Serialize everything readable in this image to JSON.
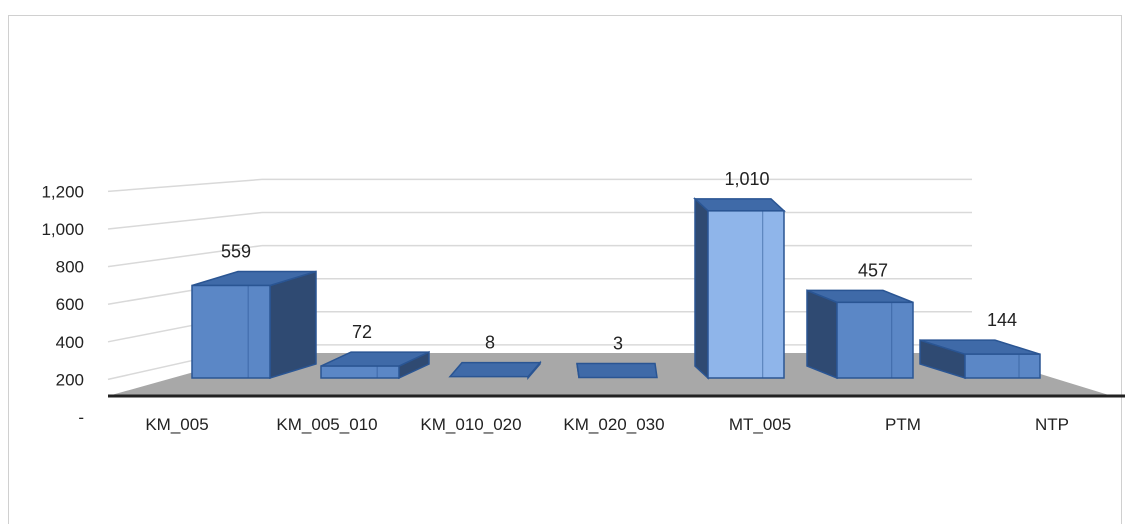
{
  "chart_data": {
    "type": "bar",
    "style": "3d-column",
    "title": "",
    "xlabel": "",
    "ylabel": "",
    "categories": [
      "KM_005",
      "KM_005_010",
      "KM_010_020",
      "KM_020_030",
      "MT_005",
      "PTM",
      "NTP"
    ],
    "values": [
      559,
      72,
      8,
      3,
      1010,
      457,
      144
    ],
    "value_labels": [
      "559",
      "72",
      "8",
      "3",
      "1,010",
      "457",
      "144"
    ],
    "yticks": [
      "-",
      "200",
      "400",
      "600",
      "800",
      "1,000",
      "1,200"
    ],
    "ylim": [
      0,
      1200
    ],
    "grid": true,
    "legend": "none",
    "colors": {
      "bar_front": "#5b87c6",
      "bar_front_light": "#8fb5ea",
      "bar_side": "#2f4a72",
      "bar_top": "#3f6aa8",
      "bar_edge": "#2a5593",
      "floor": "#a8a8a8",
      "gridline": "#d9d9d9",
      "axis": "#222222"
    }
  }
}
